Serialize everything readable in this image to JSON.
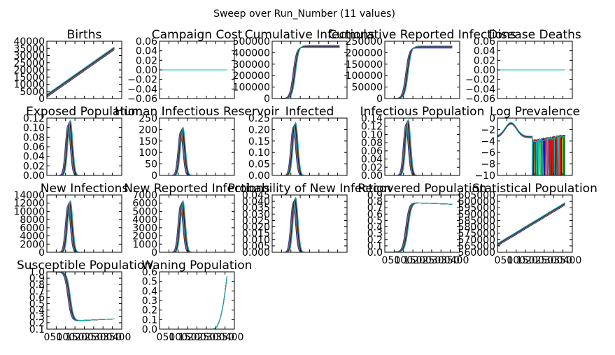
{
  "suptitle": "Sweep over Run_Number (11 values)",
  "palette": [
    "#0000ff",
    "#008000",
    "#ff0000",
    "#00bfbf",
    "#bf00bf",
    "#bfbf00",
    "#000000"
  ],
  "chart_data": [
    {
      "title": "Births",
      "type": "line",
      "ylim": [
        0,
        40000
      ],
      "yticks": [
        "0",
        "5000",
        "10000",
        "15000",
        "20000",
        "25000",
        "30000",
        "35000",
        "40000"
      ],
      "xticks": [],
      "shape": "linear",
      "y0": 2000,
      "y1": 35000
    },
    {
      "title": "Campaign Cost",
      "type": "line",
      "ylim": [
        -0.06,
        0.06
      ],
      "yticks": [
        "−0.06",
        "−0.04",
        "−0.02",
        "0.00",
        "0.02",
        "0.04",
        "0.06"
      ],
      "xticks": [],
      "shape": "flat",
      "y0": 0
    },
    {
      "title": "Cumulative Infections",
      "type": "line",
      "ylim": [
        0,
        500000
      ],
      "yticks": [
        "0",
        "100000",
        "200000",
        "300000",
        "400000",
        "500000"
      ],
      "xticks": [],
      "shape": "sigmoid",
      "ymax": 455000
    },
    {
      "title": "Cumulative Reported Infections",
      "type": "line",
      "ylim": [
        0,
        250000
      ],
      "yticks": [
        "0",
        "50000",
        "100000",
        "150000",
        "200000",
        "250000"
      ],
      "xticks": [],
      "shape": "sigmoid",
      "ymax": 225000
    },
    {
      "title": "Disease Deaths",
      "type": "line",
      "ylim": [
        -0.06,
        0.06
      ],
      "yticks": [
        "−0.06",
        "−0.04",
        "−0.02",
        "0.00",
        "0.02",
        "0.04",
        "0.06"
      ],
      "xticks": [],
      "shape": "flat",
      "y0": 0
    },
    {
      "title": "Exposed Population",
      "type": "line",
      "ylim": [
        0,
        0.12
      ],
      "yticks": [
        "0.00",
        "0.02",
        "0.04",
        "0.06",
        "0.08",
        "0.10",
        "0.12"
      ],
      "xticks": [],
      "shape": "peak",
      "ymax": 0.11
    },
    {
      "title": "Human Infectious Reservoir",
      "type": "line",
      "ylim": [
        0,
        250
      ],
      "yticks": [
        "0",
        "50",
        "100",
        "150",
        "200",
        "250"
      ],
      "xticks": [],
      "shape": "peak",
      "ymax": 200
    },
    {
      "title": "Infected",
      "type": "line",
      "ylim": [
        0,
        0.25
      ],
      "yticks": [
        "0.00",
        "0.05",
        "0.10",
        "0.15",
        "0.20",
        "0.25"
      ],
      "xticks": [],
      "shape": "peak",
      "ymax": 0.22
    },
    {
      "title": "Infectious Population",
      "type": "line",
      "ylim": [
        0,
        0.14
      ],
      "yticks": [
        "0.00",
        "0.02",
        "0.04",
        "0.06",
        "0.08",
        "0.10",
        "0.12",
        "0.14"
      ],
      "xticks": [],
      "shape": "peak",
      "ymax": 0.13
    },
    {
      "title": "Log Prevalence",
      "type": "line",
      "ylim": [
        -10,
        0
      ],
      "yticks": [
        "−10",
        "−8",
        "−6",
        "−4",
        "−2",
        "0"
      ],
      "xticks": [],
      "shape": "logprev"
    },
    {
      "title": "New Infections",
      "type": "line",
      "ylim": [
        0,
        14000
      ],
      "yticks": [
        "0",
        "2000",
        "4000",
        "6000",
        "8000",
        "10000",
        "12000",
        "14000"
      ],
      "xticks": [],
      "shape": "peak",
      "ymax": 12000
    },
    {
      "title": "New Reported Infections",
      "type": "line",
      "ylim": [
        0,
        7000
      ],
      "yticks": [
        "0",
        "1000",
        "2000",
        "3000",
        "4000",
        "5000",
        "6000",
        "7000"
      ],
      "xticks": [],
      "shape": "peak",
      "ymax": 6000
    },
    {
      "title": "Probability of New Infection",
      "type": "line",
      "ylim": [
        0,
        0.045
      ],
      "yticks": [
        "0.000",
        "0.005",
        "0.010",
        "0.015",
        "0.020",
        "0.025",
        "0.030",
        "0.035",
        "0.040",
        "0.045"
      ],
      "xticks": [],
      "shape": "peak",
      "ymax": 0.041
    },
    {
      "title": "Recovered Population",
      "type": "line",
      "ylim": [
        0,
        0.9
      ],
      "yticks": [
        "0.0",
        "0.1",
        "0.2",
        "0.3",
        "0.4",
        "0.5",
        "0.6",
        "0.7",
        "0.8",
        "0.9"
      ],
      "xticks": [
        "0",
        "50",
        "100",
        "150",
        "200",
        "250",
        "300",
        "350",
        "400"
      ],
      "shape": "recovered"
    },
    {
      "title": "Statistical Population",
      "type": "line",
      "ylim": [
        560000,
        605000
      ],
      "yticks": [
        "560000",
        "565000",
        "570000",
        "575000",
        "580000",
        "585000",
        "590000",
        "595000",
        "600000",
        "605000"
      ],
      "xticks": [
        "0",
        "50",
        "100",
        "150",
        "200",
        "250",
        "300",
        "350",
        "400"
      ],
      "shape": "linear",
      "y0": 566000,
      "y1": 598000
    },
    {
      "title": "Susceptible Population",
      "type": "line",
      "ylim": [
        0.1,
        1.0
      ],
      "yticks": [
        "0.1",
        "0.2",
        "0.3",
        "0.4",
        "0.5",
        "0.6",
        "0.7",
        "0.8",
        "0.9",
        "1.0"
      ],
      "xticks": [
        "0",
        "50",
        "100",
        "150",
        "200",
        "250",
        "300",
        "350",
        "400"
      ],
      "shape": "susceptible"
    },
    {
      "title": "Waning Population",
      "type": "line",
      "ylim": [
        0,
        0.6
      ],
      "yticks": [
        "0.0",
        "0.1",
        "0.2",
        "0.3",
        "0.4",
        "0.5",
        "0.6"
      ],
      "xticks": [
        "0",
        "50",
        "100",
        "150",
        "200",
        "250",
        "300",
        "350",
        "400"
      ],
      "shape": "waning"
    }
  ]
}
